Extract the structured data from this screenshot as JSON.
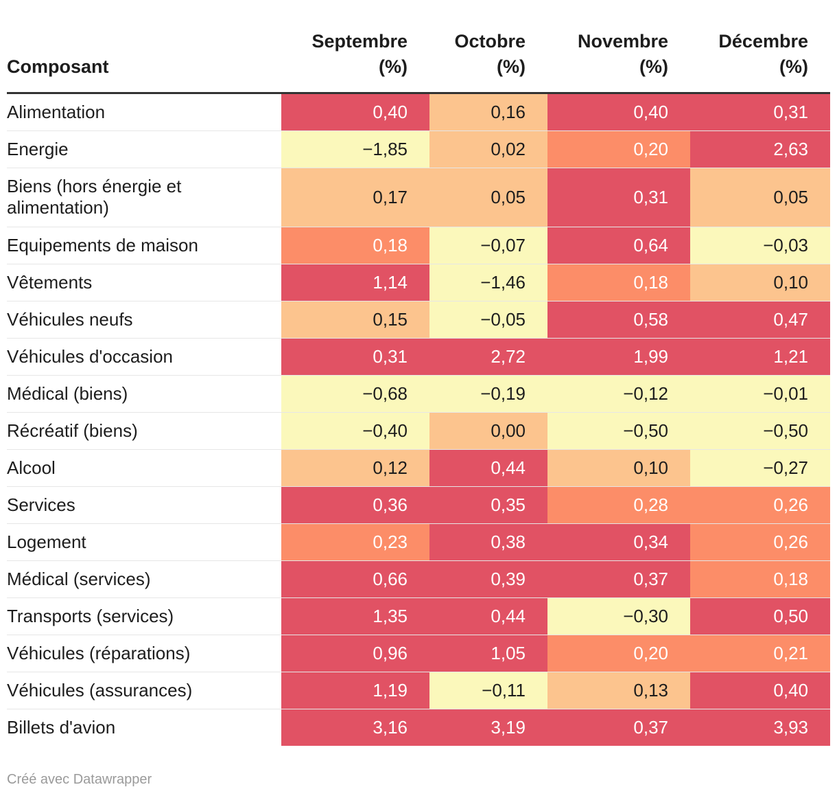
{
  "chart_data": {
    "type": "table",
    "columns": [
      {
        "key": "composant",
        "label": "Composant"
      },
      {
        "key": "sep",
        "label_line1": "Septembre",
        "label_line2": "(%)"
      },
      {
        "key": "oct",
        "label_line1": "Octobre",
        "label_line2": "(%)"
      },
      {
        "key": "nov",
        "label_line1": "Novembre",
        "label_line2": "(%)"
      },
      {
        "key": "dec",
        "label_line1": "Décembre",
        "label_line2": "(%)"
      }
    ],
    "rows": [
      {
        "label": "Alimentation",
        "values": [
          0.4,
          0.16,
          0.4,
          0.31
        ]
      },
      {
        "label": "Energie",
        "values": [
          -1.85,
          0.02,
          0.2,
          2.63
        ]
      },
      {
        "label": "Biens (hors énergie et alimentation)",
        "values": [
          0.17,
          0.05,
          0.31,
          0.05
        ]
      },
      {
        "label": "Equipements de maison",
        "values": [
          0.18,
          -0.07,
          0.64,
          -0.03
        ]
      },
      {
        "label": "Vêtements",
        "values": [
          1.14,
          -1.46,
          0.18,
          0.1
        ]
      },
      {
        "label": "Véhicules neufs",
        "values": [
          0.15,
          -0.05,
          0.58,
          0.47
        ]
      },
      {
        "label": "Véhicules d'occasion",
        "values": [
          0.31,
          2.72,
          1.99,
          1.21
        ]
      },
      {
        "label": "Médical (biens)",
        "values": [
          -0.68,
          -0.19,
          -0.12,
          -0.01
        ]
      },
      {
        "label": "Récréatif (biens)",
        "values": [
          -0.4,
          0.0,
          -0.5,
          -0.5
        ]
      },
      {
        "label": "Alcool",
        "values": [
          0.12,
          0.44,
          0.1,
          -0.27
        ]
      },
      {
        "label": "Services",
        "values": [
          0.36,
          0.35,
          0.28,
          0.26
        ]
      },
      {
        "label": "Logement",
        "values": [
          0.23,
          0.38,
          0.34,
          0.26
        ]
      },
      {
        "label": "Médical (services)",
        "values": [
          0.66,
          0.39,
          0.37,
          0.18
        ]
      },
      {
        "label": "Transports (services)",
        "values": [
          1.35,
          0.44,
          -0.3,
          0.5
        ]
      },
      {
        "label": "Véhicules (réparations)",
        "values": [
          0.96,
          1.05,
          0.2,
          0.21
        ]
      },
      {
        "label": "Véhicules (assurances)",
        "values": [
          1.19,
          -0.11,
          0.13,
          0.4
        ]
      },
      {
        "label": "Billets d'avion",
        "values": [
          3.16,
          3.19,
          0.37,
          3.93
        ]
      }
    ],
    "color_scale": {
      "bins": [
        {
          "max": 0.0,
          "color": "#fbf8bb",
          "text": "dark"
        },
        {
          "max": 0.17,
          "color": "#fcc48e",
          "text": "dark"
        },
        {
          "max": 0.3,
          "color": "#fc8d68",
          "text": "light"
        },
        {
          "max": 999,
          "color": "#e15264",
          "text": "light"
        }
      ],
      "special": [
        {
          "value": 0.0,
          "color": "#fcc48e"
        }
      ],
      "decimal_separator": ",",
      "minus_sign": "−"
    }
  },
  "footer": {
    "credit": "Créé avec Datawrapper"
  }
}
